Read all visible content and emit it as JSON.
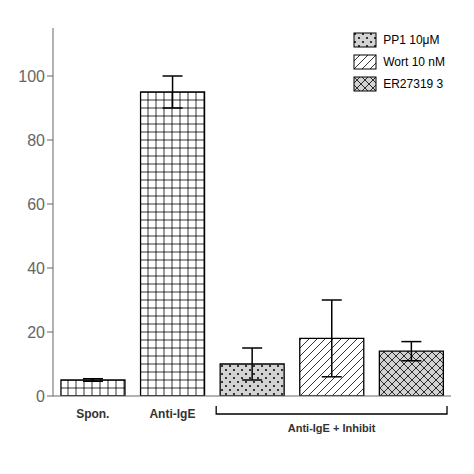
{
  "chart_data": {
    "type": "bar",
    "categories": [
      "Spon.",
      "Anti-IgE",
      null,
      null,
      null
    ],
    "series": [
      {
        "color": "white",
        "values": [
          5,
          95,
          null,
          null,
          null
        ],
        "errors": [
          0.4,
          5,
          null,
          null,
          null
        ]
      },
      {
        "name": "PP1 10μM",
        "color": "lightgray",
        "values": [
          null,
          null,
          10,
          null,
          null
        ],
        "errors": [
          null,
          null,
          5,
          null,
          null
        ]
      },
      {
        "name": "Wort 10 nM",
        "color": "white",
        "values": [
          null,
          null,
          null,
          18,
          null
        ],
        "errors": [
          null,
          null,
          null,
          12,
          null
        ]
      },
      {
        "name": "ER27319 3",
        "color": "lightgray",
        "values": [
          null,
          null,
          null,
          null,
          14
        ],
        "errors": [
          null,
          null,
          null,
          null,
          3
        ]
      }
    ],
    "annotations": [
      "Anti-IgE + Inhibit"
    ],
    "ylim": [
      0,
      115
    ],
    "yticks": [
      0,
      20,
      40,
      60,
      80,
      100
    ],
    "legend": "upper right",
    "grid": false
  }
}
